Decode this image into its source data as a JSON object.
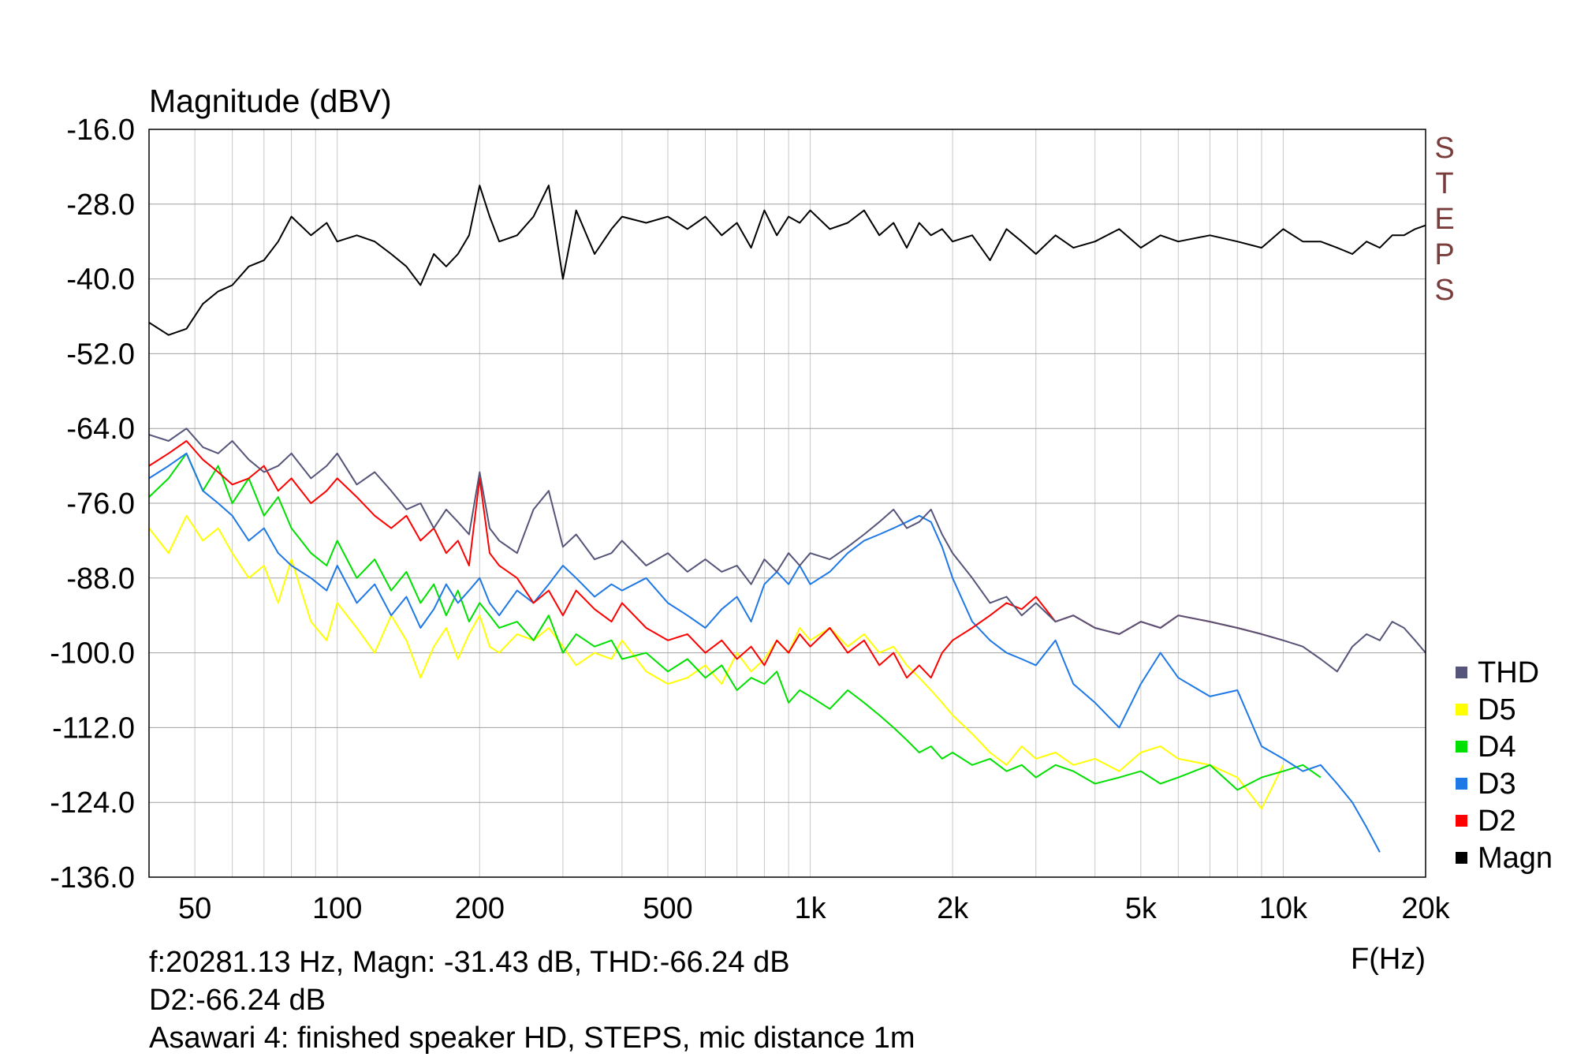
{
  "info": {
    "line1": "f:20281.13 Hz, Magn: -31.43 dB, THD:-66.24  dB",
    "line2": "D2:-66.24 dB",
    "line3": "Asawari 4: finished speaker HD, STEPS, mic distance 1m"
  },
  "chart_data": {
    "type": "line",
    "title": "",
    "ylabel": "Magnitude (dBV)",
    "xlabel": "F(Hz)",
    "side_label": "STEPS",
    "x_scale": "log",
    "xlim": [
      40,
      20000
    ],
    "ylim": [
      -136,
      -16
    ],
    "grid": true,
    "legend_position": "right-bottom",
    "y_ticks": [
      "-16.0",
      "-28.0",
      "-40.0",
      "-52.0",
      "-64.0",
      "-76.0",
      "-88.0",
      "-100.0",
      "-112.0",
      "-124.0",
      "-136.0"
    ],
    "x_ticks": [
      {
        "value": 50,
        "label": "50"
      },
      {
        "value": 100,
        "label": "100"
      },
      {
        "value": 200,
        "label": "200"
      },
      {
        "value": 500,
        "label": "500"
      },
      {
        "value": 1000,
        "label": "1k"
      },
      {
        "value": 2000,
        "label": "2k"
      },
      {
        "value": 5000,
        "label": "5k"
      },
      {
        "value": 10000,
        "label": "10k"
      },
      {
        "value": 20000,
        "label": "20k"
      }
    ],
    "series": [
      {
        "name": "Magn",
        "color": "#000000",
        "x": [
          40,
          44,
          48,
          52,
          56,
          60,
          65,
          70,
          75,
          80,
          88,
          95,
          100,
          110,
          120,
          130,
          140,
          150,
          160,
          170,
          180,
          190,
          200,
          210,
          220,
          240,
          260,
          280,
          300,
          320,
          350,
          380,
          400,
          450,
          500,
          550,
          600,
          650,
          700,
          750,
          800,
          850,
          900,
          950,
          1000,
          1100,
          1200,
          1300,
          1400,
          1500,
          1600,
          1700,
          1800,
          1900,
          2000,
          2200,
          2400,
          2600,
          2800,
          3000,
          3300,
          3600,
          4000,
          4500,
          5000,
          5500,
          6000,
          7000,
          8000,
          9000,
          10000,
          11000,
          12000,
          13000,
          14000,
          15000,
          16000,
          17000,
          18000,
          19000,
          20000
        ],
        "y": [
          -47,
          -49,
          -48,
          -44,
          -42,
          -41,
          -38,
          -37,
          -34,
          -30,
          -33,
          -31,
          -34,
          -33,
          -34,
          -36,
          -38,
          -41,
          -36,
          -38,
          -36,
          -33,
          -25,
          -30,
          -34,
          -33,
          -30,
          -25,
          -40,
          -29,
          -36,
          -32,
          -30,
          -31,
          -30,
          -32,
          -30,
          -33,
          -31,
          -35,
          -29,
          -33,
          -30,
          -31,
          -29,
          -32,
          -31,
          -29,
          -33,
          -31,
          -35,
          -31,
          -33,
          -32,
          -34,
          -33,
          -37,
          -32,
          -34,
          -36,
          -33,
          -35,
          -34,
          -32,
          -35,
          -33,
          -34,
          -33,
          -34,
          -35,
          -32,
          -34,
          -34,
          -35,
          -36,
          -34,
          -35,
          -33,
          -33,
          -32,
          -31.4
        ]
      },
      {
        "name": "THD",
        "color": "#55557a",
        "x": [
          40,
          44,
          48,
          52,
          56,
          60,
          65,
          70,
          75,
          80,
          88,
          95,
          100,
          110,
          120,
          130,
          140,
          150,
          160,
          170,
          180,
          190,
          200,
          210,
          220,
          240,
          260,
          280,
          300,
          320,
          350,
          380,
          400,
          450,
          500,
          550,
          600,
          650,
          700,
          750,
          800,
          850,
          900,
          950,
          1000,
          1100,
          1200,
          1300,
          1400,
          1500,
          1600,
          1700,
          1800,
          1900,
          2000,
          2200,
          2400,
          2600,
          2800,
          3000,
          3300,
          3600,
          4000,
          4500,
          5000,
          5500,
          6000,
          7000,
          8000,
          9000,
          10000,
          11000,
          12000,
          13000,
          14000,
          15000,
          16000,
          17000,
          18000,
          19000,
          20000
        ],
        "y": [
          -65,
          -66,
          -64,
          -67,
          -68,
          -66,
          -69,
          -71,
          -70,
          -68,
          -72,
          -70,
          -68,
          -73,
          -71,
          -74,
          -77,
          -76,
          -80,
          -77,
          -79,
          -81,
          -71,
          -80,
          -82,
          -84,
          -77,
          -74,
          -83,
          -81,
          -85,
          -84,
          -82,
          -86,
          -84,
          -87,
          -85,
          -87,
          -86,
          -89,
          -85,
          -87,
          -84,
          -86,
          -84,
          -85,
          -83,
          -81,
          -79,
          -77,
          -80,
          -79,
          -77,
          -81,
          -84,
          -88,
          -92,
          -91,
          -94,
          -92,
          -95,
          -94,
          -96,
          -97,
          -95,
          -96,
          -94,
          -95,
          -96,
          -97,
          -98,
          -99,
          -101,
          -103,
          -99,
          -97,
          -98,
          -95,
          -96,
          -98,
          -100
        ]
      },
      {
        "name": "D5",
        "color": "#ffff00",
        "x": [
          40,
          44,
          48,
          52,
          56,
          60,
          65,
          70,
          75,
          80,
          88,
          95,
          100,
          110,
          120,
          130,
          140,
          150,
          160,
          170,
          180,
          190,
          200,
          210,
          220,
          240,
          260,
          280,
          300,
          320,
          350,
          380,
          400,
          450,
          500,
          550,
          600,
          650,
          700,
          750,
          800,
          850,
          900,
          950,
          1000,
          1100,
          1200,
          1300,
          1400,
          1500,
          1600,
          1700,
          1800,
          1900,
          2000,
          2200,
          2400,
          2600,
          2800,
          3000,
          3300,
          3600,
          4000,
          4500,
          5000,
          5500,
          6000,
          7000,
          8000,
          9000,
          10000
        ],
        "y": [
          -80,
          -84,
          -78,
          -82,
          -80,
          -84,
          -88,
          -86,
          -92,
          -85,
          -95,
          -98,
          -92,
          -96,
          -100,
          -94,
          -98,
          -104,
          -99,
          -96,
          -101,
          -97,
          -94,
          -99,
          -100,
          -97,
          -98,
          -96,
          -99,
          -102,
          -100,
          -101,
          -98,
          -103,
          -105,
          -104,
          -102,
          -105,
          -100,
          -103,
          -101,
          -98,
          -100,
          -96,
          -98,
          -96,
          -99,
          -97,
          -100,
          -99,
          -102,
          -104,
          -106,
          -108,
          -110,
          -113,
          -116,
          -118,
          -115,
          -117,
          -116,
          -118,
          -117,
          -119,
          -116,
          -115,
          -117,
          -118,
          -120,
          -125,
          -118
        ]
      },
      {
        "name": "D4",
        "color": "#00e000",
        "x": [
          40,
          44,
          48,
          52,
          56,
          60,
          65,
          70,
          75,
          80,
          88,
          95,
          100,
          110,
          120,
          130,
          140,
          150,
          160,
          170,
          180,
          190,
          200,
          210,
          220,
          240,
          260,
          280,
          300,
          320,
          350,
          380,
          400,
          450,
          500,
          550,
          600,
          650,
          700,
          750,
          800,
          850,
          900,
          950,
          1000,
          1100,
          1200,
          1300,
          1400,
          1500,
          1600,
          1700,
          1800,
          1900,
          2000,
          2200,
          2400,
          2600,
          2800,
          3000,
          3300,
          3600,
          4000,
          4500,
          5000,
          5500,
          6000,
          7000,
          8000,
          9000,
          10000,
          11000,
          12000
        ],
        "y": [
          -75,
          -72,
          -68,
          -74,
          -70,
          -76,
          -72,
          -78,
          -75,
          -80,
          -84,
          -86,
          -82,
          -88,
          -85,
          -90,
          -87,
          -92,
          -89,
          -94,
          -90,
          -95,
          -92,
          -94,
          -96,
          -95,
          -98,
          -94,
          -100,
          -97,
          -99,
          -98,
          -101,
          -100,
          -103,
          -101,
          -104,
          -102,
          -106,
          -104,
          -105,
          -103,
          -108,
          -106,
          -107,
          -109,
          -106,
          -108,
          -110,
          -112,
          -114,
          -116,
          -115,
          -117,
          -116,
          -118,
          -117,
          -119,
          -118,
          -120,
          -118,
          -119,
          -121,
          -120,
          -119,
          -121,
          -120,
          -118,
          -122,
          -120,
          -119,
          -118,
          -120
        ]
      },
      {
        "name": "D3",
        "color": "#1e78e6",
        "x": [
          40,
          44,
          48,
          52,
          56,
          60,
          65,
          70,
          75,
          80,
          88,
          95,
          100,
          110,
          120,
          130,
          140,
          150,
          160,
          170,
          180,
          190,
          200,
          210,
          220,
          240,
          260,
          280,
          300,
          320,
          350,
          380,
          400,
          450,
          500,
          550,
          600,
          650,
          700,
          750,
          800,
          850,
          900,
          950,
          1000,
          1100,
          1200,
          1300,
          1400,
          1500,
          1600,
          1700,
          1800,
          1900,
          2000,
          2200,
          2400,
          2600,
          2800,
          3000,
          3300,
          3600,
          4000,
          4500,
          5000,
          5500,
          6000,
          7000,
          8000,
          9000,
          10000,
          11000,
          12000,
          13000,
          14000,
          15000,
          16000
        ],
        "y": [
          -72,
          -70,
          -68,
          -74,
          -76,
          -78,
          -82,
          -80,
          -84,
          -86,
          -88,
          -90,
          -86,
          -92,
          -89,
          -94,
          -91,
          -96,
          -93,
          -89,
          -92,
          -90,
          -88,
          -92,
          -94,
          -90,
          -92,
          -89,
          -86,
          -88,
          -91,
          -89,
          -90,
          -88,
          -92,
          -94,
          -96,
          -93,
          -91,
          -95,
          -89,
          -87,
          -89,
          -86,
          -89,
          -87,
          -84,
          -82,
          -81,
          -80,
          -79,
          -78,
          -79,
          -83,
          -88,
          -95,
          -98,
          -100,
          -101,
          -102,
          -98,
          -105,
          -108,
          -112,
          -105,
          -100,
          -104,
          -107,
          -106,
          -115,
          -117,
          -119,
          -118,
          -121,
          -124,
          -128,
          -132
        ]
      },
      {
        "name": "D2",
        "color": "#ff0000",
        "x": [
          40,
          44,
          48,
          52,
          56,
          60,
          65,
          70,
          75,
          80,
          88,
          95,
          100,
          110,
          120,
          130,
          140,
          150,
          160,
          170,
          180,
          190,
          200,
          210,
          220,
          240,
          260,
          280,
          300,
          320,
          350,
          380,
          400,
          450,
          500,
          550,
          600,
          650,
          700,
          750,
          800,
          850,
          900,
          950,
          1000,
          1100,
          1200,
          1300,
          1400,
          1500,
          1600,
          1700,
          1800,
          1900,
          2000,
          2200,
          2400,
          2600,
          2800,
          3000,
          3300,
          3600,
          4000,
          4500,
          5000,
          5500,
          6000,
          7000,
          8000,
          9000,
          10000
        ],
        "y": [
          -70,
          -68,
          -66,
          -69,
          -71,
          -73,
          -72,
          -70,
          -74,
          -72,
          -76,
          -74,
          -72,
          -75,
          -78,
          -80,
          -78,
          -82,
          -80,
          -84,
          -82,
          -86,
          -72,
          -84,
          -86,
          -88,
          -92,
          -90,
          -94,
          -90,
          -93,
          -95,
          -92,
          -96,
          -98,
          -97,
          -100,
          -98,
          -101,
          -99,
          -102,
          -98,
          -100,
          -97,
          -99,
          -96,
          -100,
          -98,
          -102,
          -100,
          -104,
          -102,
          -104,
          -100,
          -98,
          -96,
          -94,
          -92,
          -93,
          -91,
          -95,
          -94,
          -96,
          -97,
          -95,
          -96,
          -94,
          -95,
          -96,
          -97,
          -98
        ]
      }
    ]
  }
}
